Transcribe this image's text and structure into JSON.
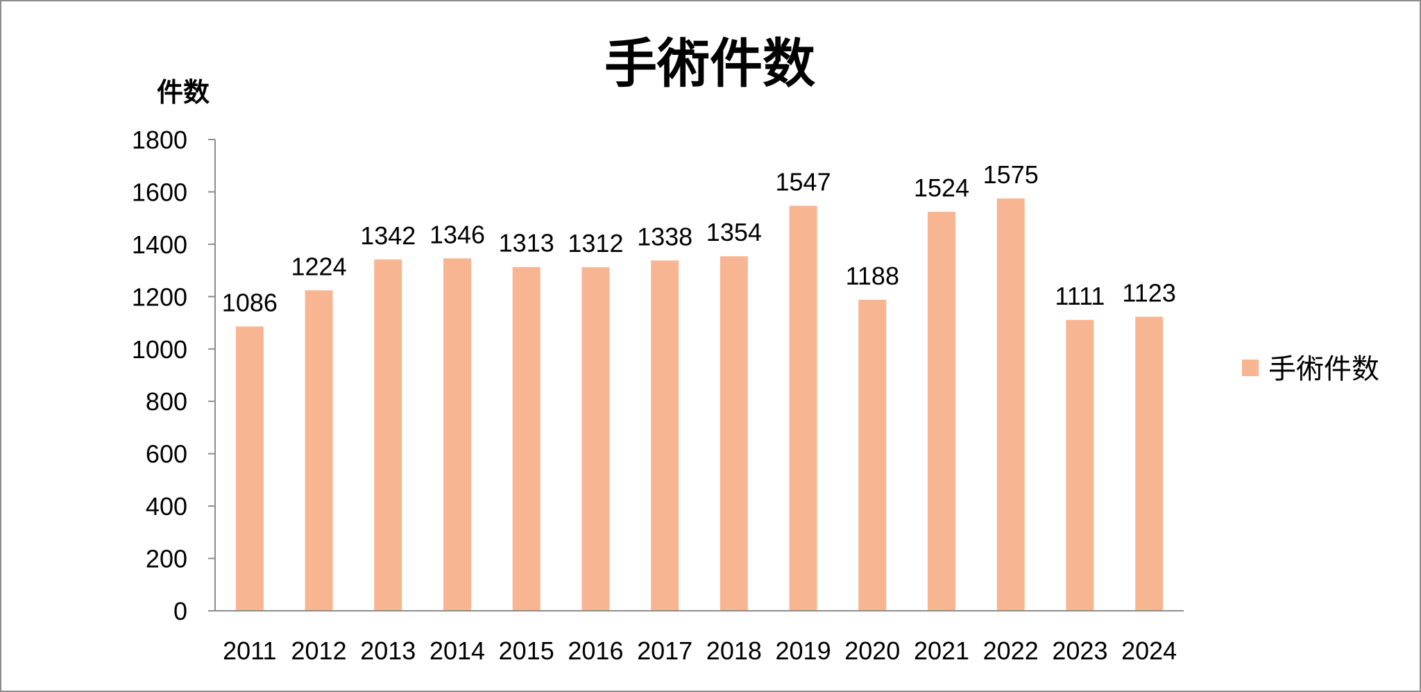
{
  "chart_data": {
    "type": "bar",
    "title": "手術件数",
    "ylabel": "件数",
    "xlabel": "",
    "categories": [
      "2011",
      "2012",
      "2013",
      "2014",
      "2015",
      "2016",
      "2017",
      "2018",
      "2019",
      "2020",
      "2021",
      "2022",
      "2023",
      "2024"
    ],
    "series": [
      {
        "name": "手術件数",
        "values": [
          1086,
          1224,
          1342,
          1346,
          1313,
          1312,
          1338,
          1354,
          1547,
          1188,
          1524,
          1575,
          1111,
          1123
        ],
        "color": "#f8b592"
      }
    ],
    "ylim": [
      0,
      1800
    ],
    "yticks": [
      0,
      200,
      400,
      600,
      800,
      1000,
      1200,
      1400,
      1600,
      1800
    ],
    "data_labels": true,
    "grid": false,
    "legend": "right",
    "axis_color": "#8c8c8c"
  }
}
